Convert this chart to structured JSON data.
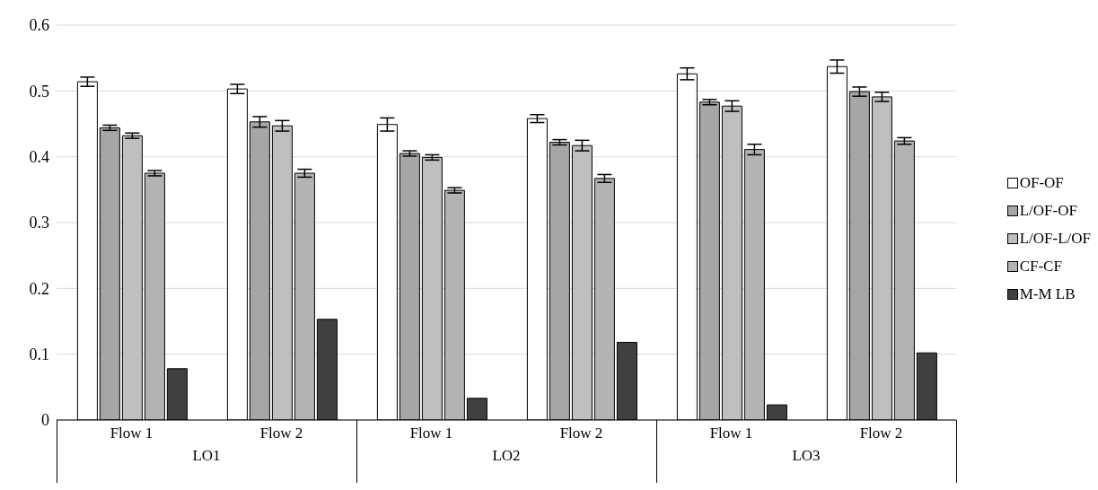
{
  "chart_data": {
    "type": "bar",
    "categories": [
      "Flow 1",
      "Flow 2",
      "Flow 1",
      "Flow 2",
      "Flow 1",
      "Flow 2"
    ],
    "annotations": [
      "LO1",
      "LO2",
      "LO3"
    ],
    "series": [
      {
        "name": "OF-OF",
        "color": "#ffffff",
        "values": [
          0.514,
          0.503,
          0.449,
          0.458,
          0.526,
          0.537
        ],
        "errors": [
          0.007,
          0.007,
          0.01,
          0.006,
          0.009,
          0.01
        ]
      },
      {
        "name": "L/OF-OF",
        "color": "#a6a6a6",
        "values": [
          0.444,
          0.453,
          0.405,
          0.422,
          0.483,
          0.499
        ],
        "errors": [
          0.004,
          0.008,
          0.004,
          0.004,
          0.004,
          0.007
        ]
      },
      {
        "name": "L/OF-L/OF",
        "color": "#bfbfbf",
        "values": [
          0.432,
          0.447,
          0.399,
          0.417,
          0.477,
          0.491
        ],
        "errors": [
          0.004,
          0.008,
          0.004,
          0.008,
          0.008,
          0.007
        ]
      },
      {
        "name": "CF-CF",
        "color": "#b3b3b3",
        "values": [
          0.375,
          0.375,
          0.349,
          0.367,
          0.411,
          0.424
        ],
        "errors": [
          0.004,
          0.006,
          0.004,
          0.006,
          0.008,
          0.005
        ]
      },
      {
        "name": "M-M LB",
        "color": "#404040",
        "values": [
          0.078,
          0.153,
          0.033,
          0.118,
          0.023,
          0.102
        ]
      }
    ],
    "ylim": [
      0,
      0.6
    ],
    "yticks": [
      0,
      0.1,
      0.2,
      0.3,
      0.4,
      0.5,
      0.6
    ],
    "grid": "y",
    "legend": "right"
  }
}
